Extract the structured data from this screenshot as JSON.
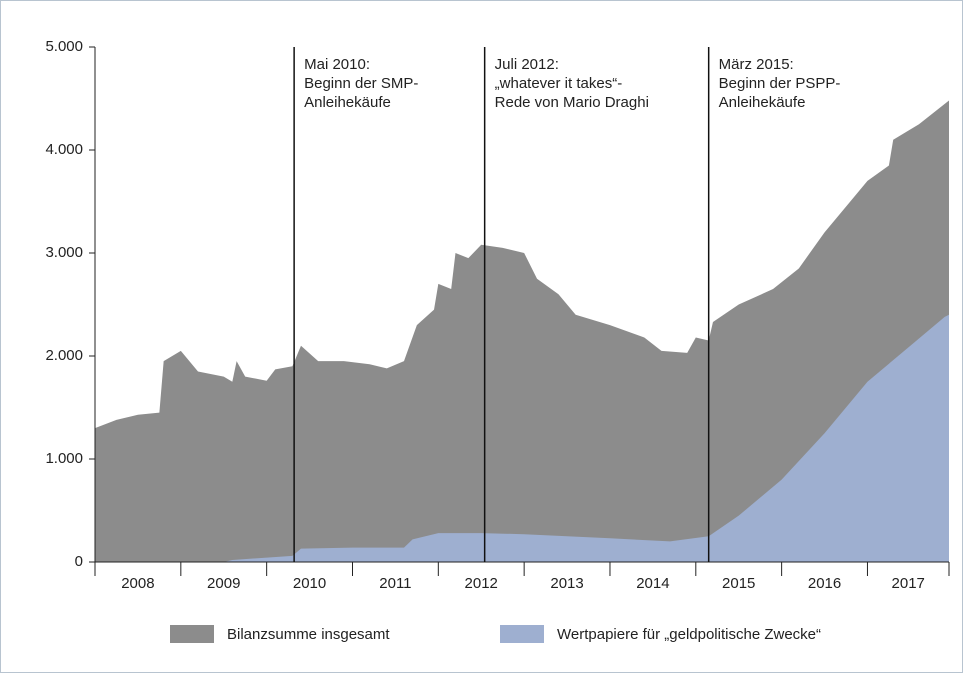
{
  "chart_data": {
    "type": "area",
    "xlim": [
      2008,
      2017.95
    ],
    "xticks": [
      2008,
      2009,
      2010,
      2011,
      2012,
      2013,
      2014,
      2015,
      2016,
      2017
    ],
    "categories": [
      "2008",
      "2009",
      "2010",
      "2011",
      "2012",
      "2013",
      "2014",
      "2015",
      "2016",
      "2017"
    ],
    "ylim": [
      0,
      5000
    ],
    "yticks": [
      0,
      {
        "value": 1000,
        "label": "1.000"
      },
      {
        "value": 2000,
        "label": "2.000"
      },
      {
        "value": 3000,
        "label": "3.000"
      },
      {
        "value": 4000,
        "label": "4.000"
      },
      {
        "value": 5000,
        "label": "5.000"
      }
    ],
    "series": [
      {
        "name": "Bilanzsumme insgesamt",
        "color": "#8c8c8c",
        "x": [
          2008.0,
          2008.25,
          2008.5,
          2008.75,
          2008.8,
          2009.0,
          2009.2,
          2009.5,
          2009.6,
          2009.65,
          2009.75,
          2010.0,
          2010.1,
          2010.3,
          2010.4,
          2010.6,
          2010.9,
          2011.2,
          2011.4,
          2011.6,
          2011.75,
          2011.95,
          2012.0,
          2012.15,
          2012.2,
          2012.35,
          2012.5,
          2012.75,
          2013.0,
          2013.15,
          2013.4,
          2013.6,
          2014.0,
          2014.4,
          2014.6,
          2014.9,
          2015.0,
          2015.15,
          2015.2,
          2015.5,
          2015.9,
          2016.2,
          2016.5,
          2016.8,
          2017.0,
          2017.25,
          2017.3,
          2017.6,
          2017.95
        ],
        "values": [
          1300,
          1380,
          1430,
          1450,
          1950,
          2050,
          1850,
          1800,
          1750,
          1950,
          1800,
          1760,
          1870,
          1900,
          2100,
          1950,
          1950,
          1920,
          1880,
          1950,
          2300,
          2450,
          2700,
          2650,
          3000,
          2950,
          3080,
          3050,
          3000,
          2750,
          2600,
          2400,
          2300,
          2180,
          2050,
          2030,
          2180,
          2150,
          2330,
          2500,
          2650,
          2850,
          3200,
          3500,
          3700,
          3850,
          4100,
          4250,
          4480
        ]
      },
      {
        "name": "Wertpapiere für „geldpolitische Zwecke“",
        "color": "#9eafd0",
        "x": [
          2008.0,
          2009.5,
          2009.6,
          2010.3,
          2010.4,
          2011.0,
          2011.6,
          2011.7,
          2012.0,
          2012.5,
          2013.0,
          2014.0,
          2014.7,
          2015.15,
          2015.5,
          2016.0,
          2016.5,
          2017.0,
          2017.5,
          2017.9,
          2017.95
        ],
        "values": [
          0,
          0,
          20,
          60,
          130,
          140,
          140,
          220,
          280,
          280,
          270,
          230,
          200,
          250,
          450,
          800,
          1250,
          1750,
          2100,
          2380,
          2400
        ]
      }
    ],
    "annotations": [
      {
        "x": 2010.32,
        "lines": [
          "Mai 2010:",
          "Beginn der SMP-",
          "Anleihekäufe"
        ]
      },
      {
        "x": 2012.54,
        "lines": [
          "Juli 2012:",
          "„whatever it takes“-",
          "Rede von Mario Draghi"
        ]
      },
      {
        "x": 2015.15,
        "lines": [
          "März 2015:",
          "Beginn der PSPP-",
          "Anleihekäufe"
        ]
      }
    ]
  }
}
